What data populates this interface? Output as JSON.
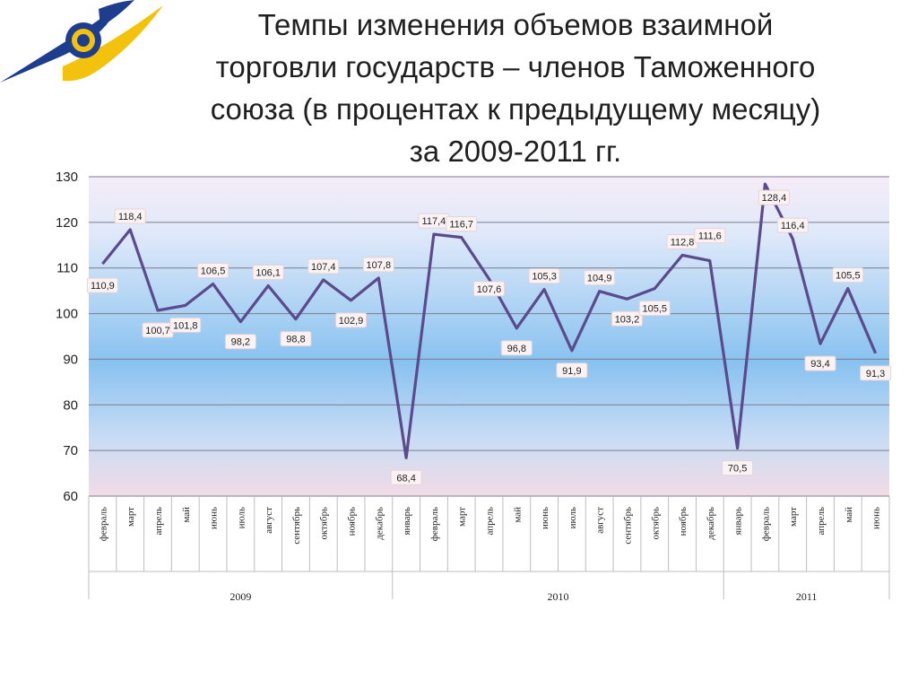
{
  "slide": {
    "title_lines": [
      "Темпы изменения объемов взаимной",
      "торговли государств – членов Таможенного",
      "союза (в процентах к предыдущему месяцу)",
      "за 2009-2011 гг."
    ]
  },
  "logo": {
    "icon": "eurasian-union-emblem-icon",
    "colors": {
      "blue": "#1e3d8f",
      "yellow": "#f2c20c"
    }
  },
  "chart_data": {
    "type": "line",
    "title": "",
    "xlabel": "",
    "ylabel": "",
    "ylim": [
      60,
      130
    ],
    "yticks": [
      60,
      70,
      80,
      90,
      100,
      110,
      120,
      130
    ],
    "grid": true,
    "legend": "none",
    "line_color": "#5b4a8c",
    "categories": [
      "февраль",
      "март",
      "апрель",
      "май",
      "июнь",
      "июль",
      "август",
      "сентябрь",
      "октябрь",
      "ноябрь",
      "декабрь",
      "январь",
      "февраль",
      "март",
      "апрель",
      "май",
      "июнь",
      "июль",
      "август",
      "сентябрь",
      "октябрь",
      "ноябрь",
      "декабрь",
      "январь",
      "февраль",
      "март",
      "апрель",
      "май",
      "июнь"
    ],
    "years": [
      {
        "label": "2009",
        "count": 11
      },
      {
        "label": "2010",
        "count": 12
      },
      {
        "label": "2011",
        "count": 6
      }
    ],
    "series": [
      {
        "values": [
          110.9,
          118.4,
          100.7,
          101.8,
          106.5,
          98.2,
          106.1,
          98.8,
          107.4,
          102.9,
          107.8,
          68.4,
          117.4,
          116.7,
          107.6,
          96.8,
          105.3,
          91.9,
          104.9,
          103.2,
          105.5,
          112.8,
          111.6,
          70.5,
          128.4,
          116.4,
          93.4,
          105.5,
          91.3
        ],
        "labels": [
          "110,9",
          "118,4",
          "100,7",
          "101,8",
          "106,5",
          "98,2",
          "106,1",
          "98,8",
          "107,4",
          "102,9",
          "107,8",
          "68,4",
          "117,4",
          "116,7",
          "107,6",
          "96,8",
          "105,3",
          "91,9",
          "104,9",
          "103,2",
          "105,5",
          "112,8",
          "111,6",
          "70,5",
          "128,4",
          "116,4",
          "93,4",
          "105,5",
          "91,3"
        ]
      }
    ]
  }
}
